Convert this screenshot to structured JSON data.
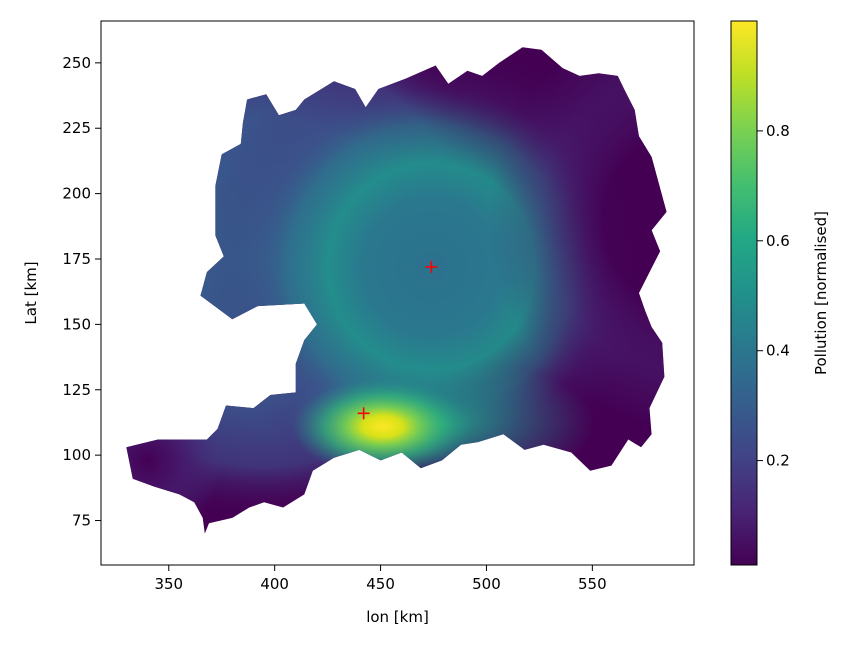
{
  "chart_data": {
    "type": "heatmap",
    "title": "",
    "xlabel": "lon [km]",
    "ylabel": "Lat [km]",
    "xlim": [
      318,
      598
    ],
    "ylim": [
      58,
      266
    ],
    "xticks": [
      350,
      400,
      450,
      500,
      550
    ],
    "yticks": [
      75,
      100,
      125,
      150,
      175,
      200,
      225,
      250
    ],
    "grid": false,
    "colormap": "viridis",
    "colorbar": {
      "label": "Pollution [normalised]",
      "range": [
        0.01,
        1.0
      ],
      "ticks": [
        0.2,
        0.4,
        0.6,
        0.8
      ]
    },
    "region_outline": [
      [
        333,
        91
      ],
      [
        330,
        103
      ],
      [
        345,
        106
      ],
      [
        368,
        106
      ],
      [
        373,
        110
      ],
      [
        377,
        119
      ],
      [
        390,
        118
      ],
      [
        398,
        123
      ],
      [
        410,
        124
      ],
      [
        410,
        135
      ],
      [
        414,
        144
      ],
      [
        420,
        150
      ],
      [
        414,
        158
      ],
      [
        392,
        157
      ],
      [
        380,
        152
      ],
      [
        365,
        161
      ],
      [
        368,
        170
      ],
      [
        376,
        176
      ],
      [
        372,
        184
      ],
      [
        372,
        203
      ],
      [
        375,
        215
      ],
      [
        384,
        219
      ],
      [
        385,
        227
      ],
      [
        387,
        236
      ],
      [
        396,
        238
      ],
      [
        402,
        230
      ],
      [
        410,
        232
      ],
      [
        414,
        236
      ],
      [
        428,
        243
      ],
      [
        438,
        240
      ],
      [
        443,
        233
      ],
      [
        449,
        240
      ],
      [
        462,
        244
      ],
      [
        476,
        249
      ],
      [
        482,
        242
      ],
      [
        491,
        247
      ],
      [
        498,
        245
      ],
      [
        506,
        250
      ],
      [
        517,
        256
      ],
      [
        526,
        255
      ],
      [
        536,
        248
      ],
      [
        544,
        245
      ],
      [
        553,
        246
      ],
      [
        562,
        245
      ],
      [
        565,
        240
      ],
      [
        570,
        232
      ],
      [
        572,
        222
      ],
      [
        578,
        214
      ],
      [
        585,
        193
      ],
      [
        578,
        186
      ],
      [
        582,
        178
      ],
      [
        572,
        162
      ],
      [
        575,
        155
      ],
      [
        578,
        149
      ],
      [
        583,
        143
      ],
      [
        584,
        130
      ],
      [
        577,
        118
      ],
      [
        578,
        108
      ],
      [
        573,
        103
      ],
      [
        567,
        106
      ],
      [
        559,
        96
      ],
      [
        549,
        94
      ],
      [
        540,
        101
      ],
      [
        527,
        104
      ],
      [
        518,
        102
      ],
      [
        508,
        108
      ],
      [
        496,
        105
      ],
      [
        488,
        104
      ],
      [
        479,
        98
      ],
      [
        469,
        95
      ],
      [
        460,
        101
      ],
      [
        450,
        98
      ],
      [
        440,
        102
      ],
      [
        428,
        99
      ],
      [
        418,
        94
      ],
      [
        414,
        85
      ],
      [
        404,
        80
      ],
      [
        395,
        82
      ],
      [
        388,
        80
      ],
      [
        380,
        76
      ],
      [
        369,
        74
      ],
      [
        367,
        70
      ],
      [
        366,
        76
      ],
      [
        362,
        82
      ],
      [
        355,
        85
      ],
      [
        343,
        88
      ]
    ],
    "sources": [
      {
        "lon": 474,
        "lat": 172
      },
      {
        "lon": 442,
        "lat": 116
      }
    ],
    "hotspot_peak": {
      "lon": 451,
      "lat": 111,
      "value": 1.0
    },
    "broad_plume_center": {
      "lon": 474,
      "lat": 172,
      "value": 0.5
    },
    "colors": {
      "source_marker": "#ff0000",
      "viridis_low": "#440154",
      "viridis_high": "#fde725"
    }
  }
}
